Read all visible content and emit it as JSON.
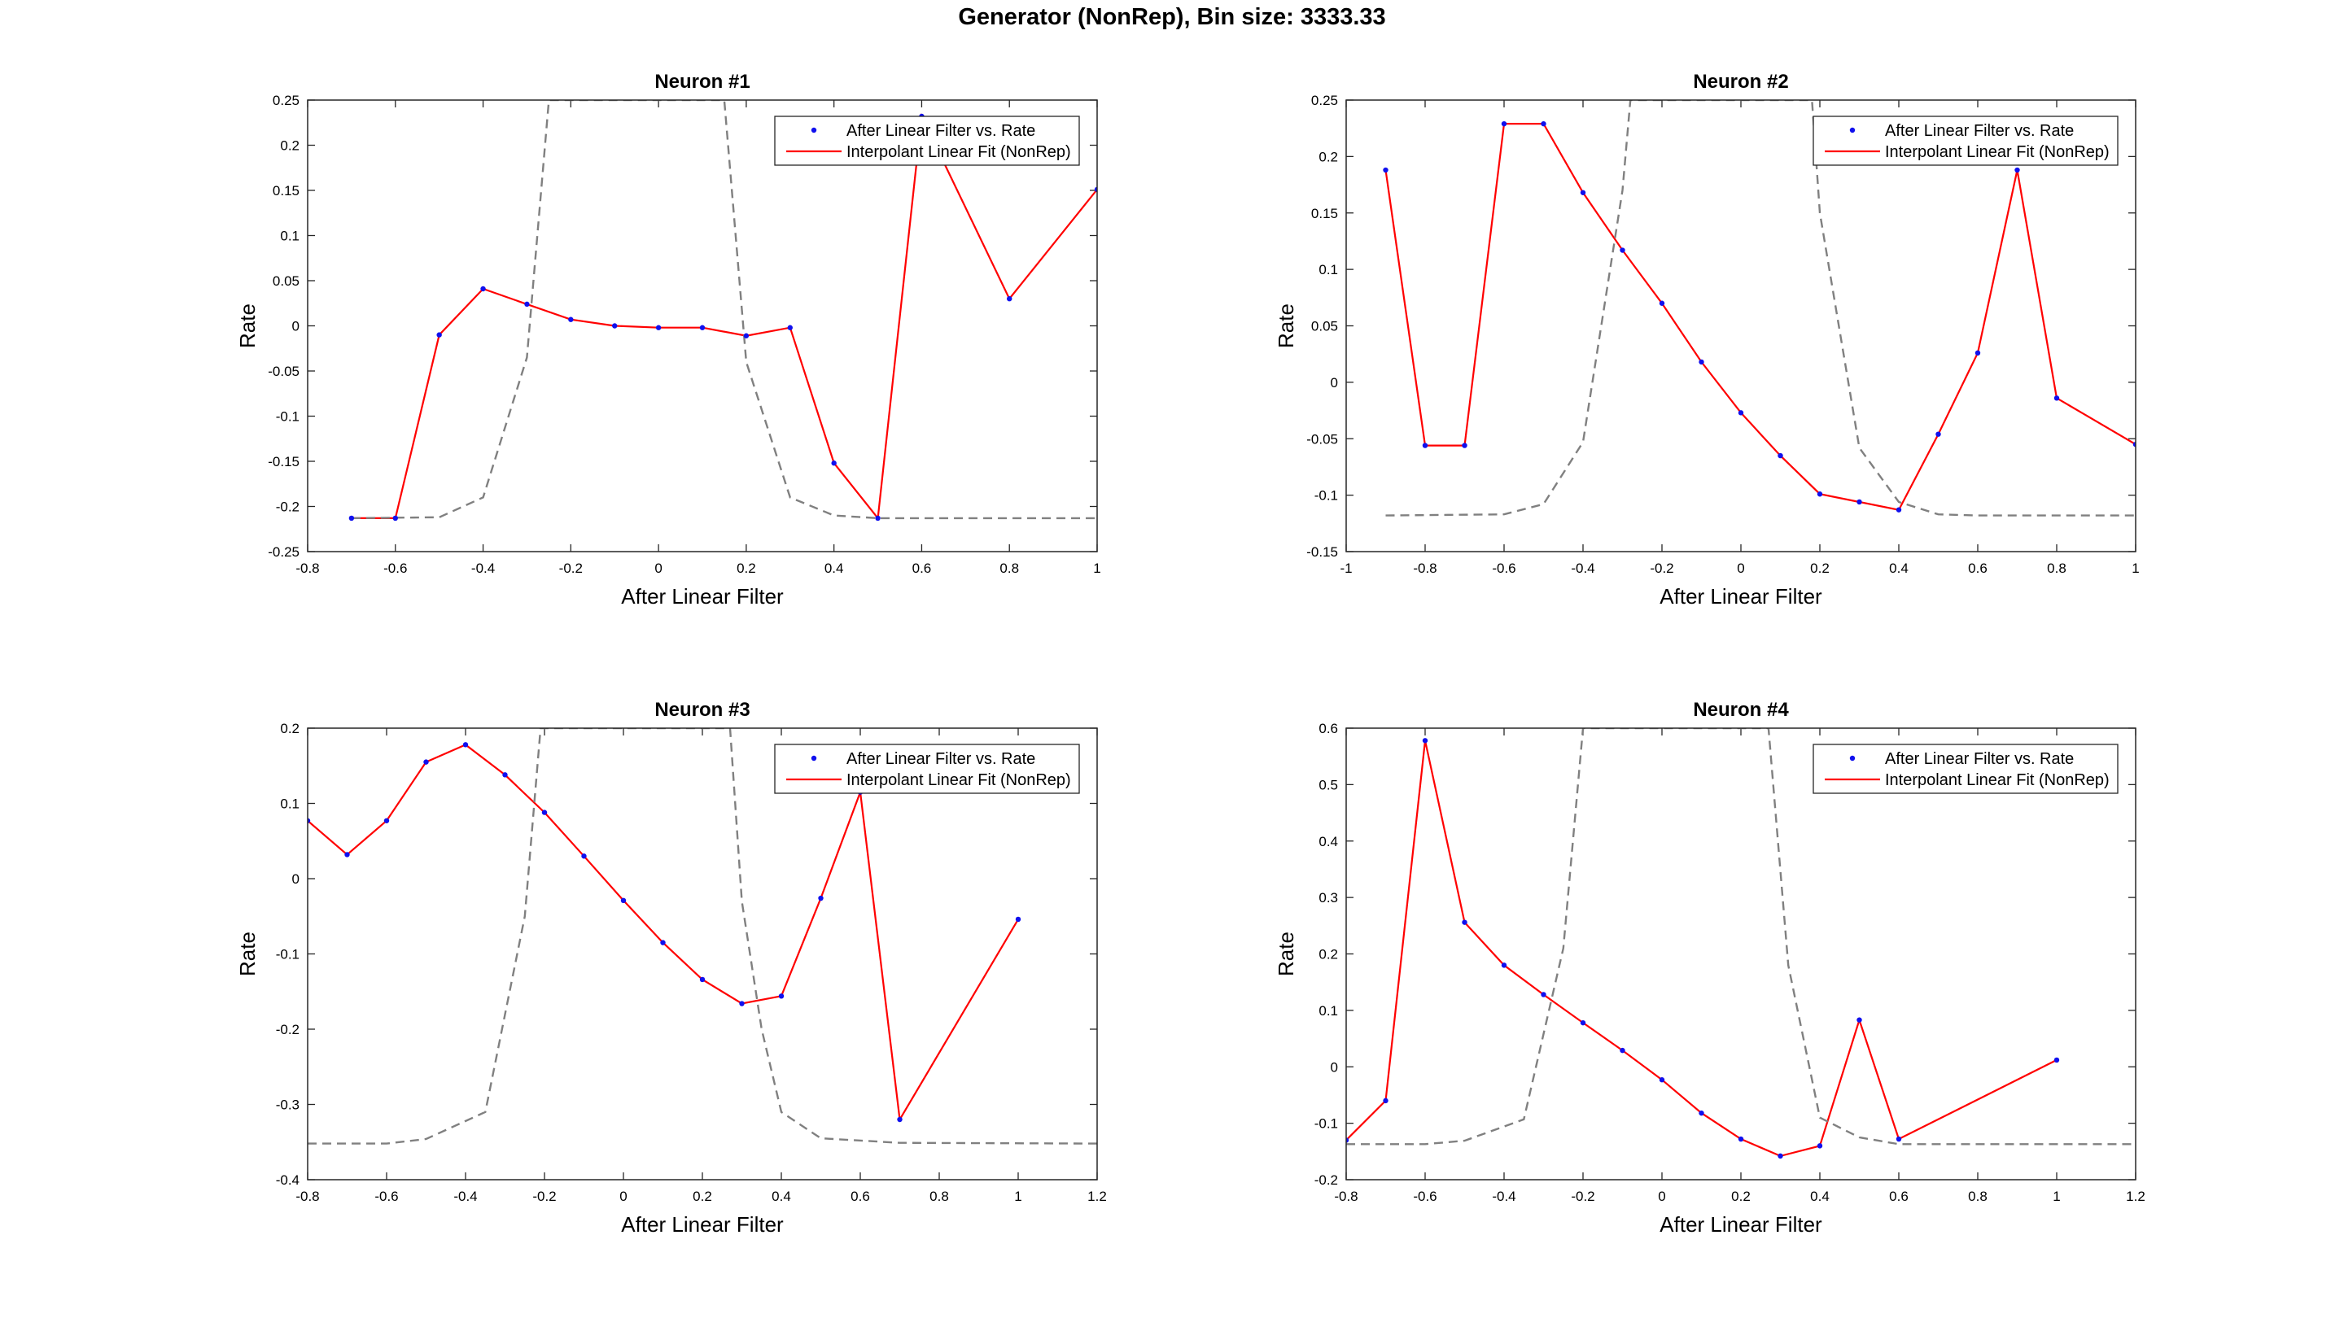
{
  "figure": {
    "title": "Generator (NonRep), Bin size: 3333.33"
  },
  "colors": {
    "points": "#1010ee",
    "fit": "#ff0000",
    "dist": "#808080",
    "axis": "#262626"
  },
  "legend": {
    "points_label": "After Linear Filter vs. Rate",
    "fit_label": "Interpolant Linear Fit (NonRep)",
    "placement": "top-right"
  },
  "chart_data": [
    {
      "type": "line",
      "title": "Neuron #1",
      "xlabel": "After Linear Filter",
      "ylabel": "Rate",
      "xlim": [
        -0.8,
        1
      ],
      "ylim": [
        -0.25,
        0.25
      ],
      "xticks": [
        -0.8,
        -0.6,
        -0.4,
        -0.2,
        0,
        0.2,
        0.4,
        0.6,
        0.8,
        1
      ],
      "yticks": [
        -0.25,
        -0.2,
        -0.15,
        -0.1,
        -0.05,
        0,
        0.05,
        0.1,
        0.15,
        0.2,
        0.25
      ],
      "xtick_labels": [
        "-0.8",
        "-0.6",
        "-0.4",
        "-0.2",
        "0",
        "0.2",
        "0.4",
        "0.6",
        "0.8",
        "1"
      ],
      "ytick_labels": [
        "-0.25",
        "-0.2",
        "-0.15",
        "-0.1",
        "-0.05",
        "0",
        "0.05",
        "0.1",
        "0.15",
        "0.2",
        "0.25"
      ],
      "grid": false,
      "series": [
        {
          "name": "After Linear Filter vs. Rate",
          "style": "points",
          "x": [
            -0.7,
            -0.6,
            -0.5,
            -0.4,
            -0.3,
            -0.2,
            -0.1,
            0,
            0.1,
            0.2,
            0.3,
            0.4,
            0.5,
            0.6,
            0.8,
            1
          ],
          "y": [
            -0.213,
            -0.213,
            -0.01,
            0.041,
            0.024,
            0.007,
            0.0,
            -0.002,
            -0.002,
            -0.011,
            -0.002,
            -0.152,
            -0.213,
            0.232,
            0.03,
            0.151
          ]
        },
        {
          "name": "Interpolant Linear Fit (NonRep)",
          "style": "line",
          "x": [
            -0.7,
            -0.6,
            -0.5,
            -0.4,
            -0.3,
            -0.2,
            -0.1,
            0,
            0.1,
            0.2,
            0.3,
            0.4,
            0.5,
            0.6,
            0.8,
            1
          ],
          "y": [
            -0.213,
            -0.213,
            -0.01,
            0.041,
            0.024,
            0.007,
            0.0,
            -0.002,
            -0.002,
            -0.011,
            -0.002,
            -0.152,
            -0.213,
            0.232,
            0.03,
            0.151
          ]
        },
        {
          "style": "dashed",
          "x": [
            -0.7,
            -0.5,
            -0.4,
            -0.3,
            -0.25,
            0.15,
            0.2,
            0.3,
            0.4,
            0.5,
            0.6,
            0.8,
            1
          ],
          "y": [
            -0.213,
            -0.212,
            -0.19,
            -0.035,
            0.25,
            0.25,
            -0.04,
            -0.19,
            -0.21,
            -0.213,
            -0.213,
            -0.213,
            -0.213
          ]
        }
      ]
    },
    {
      "type": "line",
      "title": "Neuron #2",
      "xlabel": "After Linear Filter",
      "ylabel": "Rate",
      "xlim": [
        -1,
        1
      ],
      "ylim": [
        -0.15,
        0.25
      ],
      "xticks": [
        -1,
        -0.8,
        -0.6,
        -0.4,
        -0.2,
        0,
        0.2,
        0.4,
        0.6,
        0.8,
        1
      ],
      "yticks": [
        -0.15,
        -0.1,
        -0.05,
        0,
        0.05,
        0.1,
        0.15,
        0.2,
        0.25
      ],
      "xtick_labels": [
        "-1",
        "-0.8",
        "-0.6",
        "-0.4",
        "-0.2",
        "0",
        "0.2",
        "0.4",
        "0.6",
        "0.8",
        "1"
      ],
      "ytick_labels": [
        "-0.15",
        "-0.1",
        "-0.05",
        "0",
        "0.05",
        "0.1",
        "0.15",
        "0.2",
        "0.25"
      ],
      "grid": false,
      "series": [
        {
          "name": "After Linear Filter vs. Rate",
          "style": "points",
          "x": [
            -0.9,
            -0.8,
            -0.7,
            -0.6,
            -0.5,
            -0.4,
            -0.3,
            -0.2,
            -0.1,
            0,
            0.1,
            0.2,
            0.3,
            0.4,
            0.5,
            0.6,
            0.7,
            0.8,
            1
          ],
          "y": [
            0.188,
            -0.056,
            -0.056,
            0.229,
            0.229,
            0.168,
            0.117,
            0.07,
            0.018,
            -0.027,
            -0.065,
            -0.099,
            -0.106,
            -0.113,
            -0.046,
            0.026,
            0.188,
            -0.014,
            -0.055
          ]
        },
        {
          "name": "Interpolant Linear Fit (NonRep)",
          "style": "line",
          "x": [
            -0.9,
            -0.8,
            -0.7,
            -0.6,
            -0.5,
            -0.4,
            -0.3,
            -0.2,
            -0.1,
            0,
            0.1,
            0.2,
            0.3,
            0.4,
            0.5,
            0.6,
            0.7,
            0.8,
            1
          ],
          "y": [
            0.188,
            -0.056,
            -0.056,
            0.229,
            0.229,
            0.168,
            0.117,
            0.07,
            0.018,
            -0.027,
            -0.065,
            -0.099,
            -0.106,
            -0.113,
            -0.046,
            0.026,
            0.188,
            -0.014,
            -0.055
          ]
        },
        {
          "style": "dashed",
          "x": [
            -0.9,
            -0.6,
            -0.5,
            -0.4,
            -0.3,
            -0.28,
            0.18,
            0.2,
            0.3,
            0.4,
            0.5,
            0.6,
            0.8,
            1
          ],
          "y": [
            -0.118,
            -0.117,
            -0.108,
            -0.053,
            0.17,
            0.25,
            0.25,
            0.15,
            -0.058,
            -0.106,
            -0.117,
            -0.118,
            -0.118,
            -0.118
          ]
        }
      ]
    },
    {
      "type": "line",
      "title": "Neuron #3",
      "xlabel": "After Linear Filter",
      "ylabel": "Rate",
      "xlim": [
        -0.8,
        1.2
      ],
      "ylim": [
        -0.4,
        0.2
      ],
      "xticks": [
        -0.8,
        -0.6,
        -0.4,
        -0.2,
        0,
        0.2,
        0.4,
        0.6,
        0.8,
        1,
        1.2
      ],
      "yticks": [
        -0.4,
        -0.3,
        -0.2,
        -0.1,
        0,
        0.1,
        0.2
      ],
      "xtick_labels": [
        "-0.8",
        "-0.6",
        "-0.4",
        "-0.2",
        "0",
        "0.2",
        "0.4",
        "0.6",
        "0.8",
        "1",
        "1.2"
      ],
      "ytick_labels": [
        "-0.4",
        "-0.3",
        "-0.2",
        "-0.1",
        "0",
        "0.1",
        "0.2"
      ],
      "grid": false,
      "series": [
        {
          "name": "After Linear Filter vs. Rate",
          "style": "points",
          "x": [
            -0.8,
            -0.7,
            -0.6,
            -0.5,
            -0.4,
            -0.3,
            -0.2,
            -0.1,
            0,
            0.1,
            0.2,
            0.3,
            0.4,
            0.5,
            0.6,
            0.7,
            1
          ],
          "y": [
            0.077,
            0.032,
            0.077,
            0.155,
            0.178,
            0.138,
            0.088,
            0.03,
            -0.029,
            -0.085,
            -0.134,
            -0.166,
            -0.156,
            -0.026,
            0.115,
            -0.32,
            -0.054
          ]
        },
        {
          "name": "Interpolant Linear Fit (NonRep)",
          "style": "line",
          "x": [
            -0.8,
            -0.7,
            -0.6,
            -0.5,
            -0.4,
            -0.3,
            -0.2,
            -0.1,
            0,
            0.1,
            0.2,
            0.3,
            0.4,
            0.5,
            0.6,
            0.7,
            1
          ],
          "y": [
            0.077,
            0.032,
            0.077,
            0.155,
            0.178,
            0.138,
            0.088,
            0.03,
            -0.029,
            -0.085,
            -0.134,
            -0.166,
            -0.156,
            -0.026,
            0.115,
            -0.32,
            -0.054
          ]
        },
        {
          "style": "dashed",
          "x": [
            -0.8,
            -0.6,
            -0.5,
            -0.35,
            -0.25,
            -0.21,
            0.27,
            0.3,
            0.35,
            0.4,
            0.5,
            0.7,
            1.2
          ],
          "y": [
            -0.352,
            -0.352,
            -0.346,
            -0.31,
            -0.05,
            0.2,
            0.2,
            -0.03,
            -0.2,
            -0.31,
            -0.345,
            -0.351,
            -0.352
          ]
        }
      ]
    },
    {
      "type": "line",
      "title": "Neuron #4",
      "xlabel": "After Linear Filter",
      "ylabel": "Rate",
      "xlim": [
        -0.8,
        1.2
      ],
      "ylim": [
        -0.2,
        0.6
      ],
      "xticks": [
        -0.8,
        -0.6,
        -0.4,
        -0.2,
        0,
        0.2,
        0.4,
        0.6,
        0.8,
        1,
        1.2
      ],
      "yticks": [
        -0.2,
        -0.1,
        0,
        0.1,
        0.2,
        0.3,
        0.4,
        0.5,
        0.6
      ],
      "xtick_labels": [
        "-0.8",
        "-0.6",
        "-0.4",
        "-0.2",
        "0",
        "0.2",
        "0.4",
        "0.6",
        "0.8",
        "1",
        "1.2"
      ],
      "ytick_labels": [
        "-0.2",
        "-0.1",
        "0",
        "0.1",
        "0.2",
        "0.3",
        "0.4",
        "0.5",
        "0.6"
      ],
      "grid": false,
      "series": [
        {
          "name": "After Linear Filter vs. Rate",
          "style": "points",
          "x": [
            -0.8,
            -0.7,
            -0.6,
            -0.5,
            -0.4,
            -0.3,
            -0.2,
            -0.1,
            0,
            0.1,
            0.2,
            0.3,
            0.4,
            0.5,
            0.6,
            1
          ],
          "y": [
            -0.13,
            -0.06,
            0.578,
            0.256,
            0.18,
            0.128,
            0.078,
            0.029,
            -0.023,
            -0.082,
            -0.128,
            -0.158,
            -0.14,
            0.083,
            -0.128,
            0.012
          ]
        },
        {
          "name": "Interpolant Linear Fit (NonRep)",
          "style": "line",
          "x": [
            -0.8,
            -0.7,
            -0.6,
            -0.5,
            -0.4,
            -0.3,
            -0.2,
            -0.1,
            0,
            0.1,
            0.2,
            0.3,
            0.4,
            0.5,
            0.6,
            1
          ],
          "y": [
            -0.13,
            -0.06,
            0.578,
            0.256,
            0.18,
            0.128,
            0.078,
            0.029,
            -0.023,
            -0.082,
            -0.128,
            -0.158,
            -0.14,
            0.083,
            -0.128,
            0.012
          ]
        },
        {
          "style": "dashed",
          "x": [
            -0.8,
            -0.6,
            -0.5,
            -0.35,
            -0.25,
            -0.2,
            0.27,
            0.32,
            0.4,
            0.5,
            0.6,
            0.8,
            1.2
          ],
          "y": [
            -0.137,
            -0.137,
            -0.131,
            -0.093,
            0.21,
            0.6,
            0.6,
            0.18,
            -0.09,
            -0.125,
            -0.137,
            -0.137,
            -0.137
          ]
        }
      ]
    }
  ]
}
